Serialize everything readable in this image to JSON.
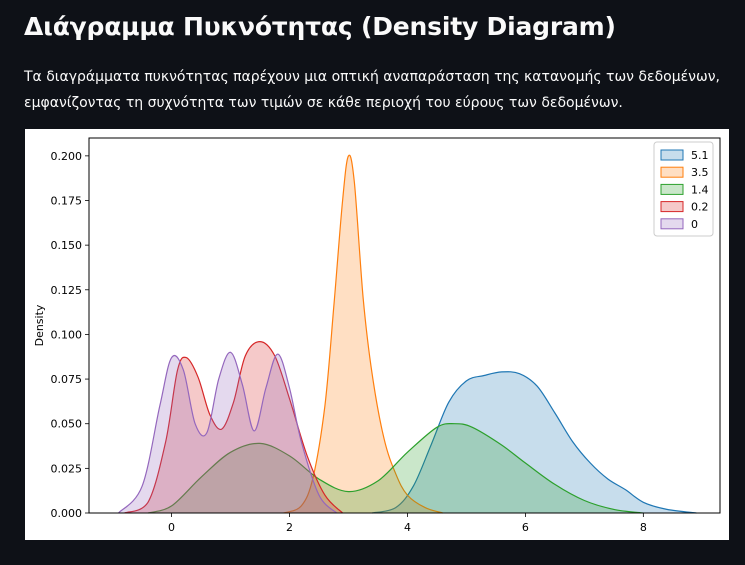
{
  "page": {
    "title": "Διάγραμμα Πυκνότητας (Density Diagram)",
    "description_line1": "Τα διαγράμματα πυκνότητας παρέχουν μια οπτική αναπαράσταση της κατανομής των δεδομένων,",
    "description_line2": "εμφανίζοντας τη συχνότητα των τιμών σε κάθε περιοχή του εύρους των δεδομένων."
  },
  "chart_data": {
    "type": "area",
    "subtype": "kde",
    "title": "",
    "xlabel": "",
    "ylabel": "Density",
    "xlim": [
      -1.4,
      9.3
    ],
    "ylim": [
      0,
      0.21
    ],
    "xticks": [
      0,
      2,
      4,
      6,
      8
    ],
    "yticks": [
      0.0,
      0.025,
      0.05,
      0.075,
      0.1,
      0.125,
      0.15,
      0.175,
      0.2
    ],
    "ytick_labels": [
      "0.000",
      "0.025",
      "0.050",
      "0.075",
      "0.100",
      "0.125",
      "0.150",
      "0.175",
      "0.200"
    ],
    "grid": false,
    "legend_position": "top-right",
    "series": [
      {
        "name": "5.1",
        "color": "#1f77b4",
        "x": [
          3.4,
          3.8,
          4.1,
          4.4,
          4.7,
          5.0,
          5.3,
          5.6,
          5.9,
          6.2,
          6.5,
          6.8,
          7.1,
          7.4,
          7.7,
          8.0,
          8.4,
          8.9
        ],
        "y": [
          0.0,
          0.003,
          0.015,
          0.038,
          0.062,
          0.074,
          0.077,
          0.079,
          0.078,
          0.071,
          0.056,
          0.04,
          0.028,
          0.019,
          0.013,
          0.006,
          0.002,
          0.0
        ]
      },
      {
        "name": "3.5",
        "color": "#ff7f0e",
        "x": [
          1.9,
          2.2,
          2.4,
          2.6,
          2.75,
          2.9,
          3.0,
          3.1,
          3.25,
          3.4,
          3.6,
          3.8,
          4.0,
          4.3,
          4.6
        ],
        "y": [
          0.0,
          0.004,
          0.02,
          0.06,
          0.115,
          0.175,
          0.2,
          0.185,
          0.12,
          0.078,
          0.042,
          0.022,
          0.01,
          0.003,
          0.0
        ]
      },
      {
        "name": "1.4",
        "color": "#2ca02c",
        "x": [
          -0.4,
          0.0,
          0.5,
          1.0,
          1.5,
          2.0,
          2.5,
          3.0,
          3.5,
          4.0,
          4.5,
          4.8,
          5.1,
          5.6,
          6.0,
          6.5,
          7.0,
          7.5,
          8.0
        ],
        "y": [
          0.0,
          0.004,
          0.02,
          0.034,
          0.039,
          0.032,
          0.019,
          0.012,
          0.018,
          0.034,
          0.048,
          0.05,
          0.048,
          0.038,
          0.028,
          0.016,
          0.007,
          0.002,
          0.0
        ]
      },
      {
        "name": "0.2",
        "color": "#d62728",
        "x": [
          -0.8,
          -0.4,
          -0.1,
          0.1,
          0.25,
          0.45,
          0.65,
          0.85,
          1.05,
          1.25,
          1.5,
          1.75,
          2.0,
          2.3,
          2.6,
          2.9
        ],
        "y": [
          0.0,
          0.006,
          0.04,
          0.08,
          0.087,
          0.076,
          0.055,
          0.047,
          0.062,
          0.088,
          0.096,
          0.088,
          0.064,
          0.032,
          0.01,
          0.0
        ]
      },
      {
        "name": "0",
        "color": "#9467bd",
        "x": [
          -0.9,
          -0.5,
          -0.2,
          0.0,
          0.2,
          0.4,
          0.6,
          0.8,
          1.0,
          1.2,
          1.4,
          1.6,
          1.8,
          2.0,
          2.2,
          2.5,
          2.8
        ],
        "y": [
          0.0,
          0.015,
          0.06,
          0.087,
          0.08,
          0.05,
          0.045,
          0.075,
          0.09,
          0.072,
          0.046,
          0.07,
          0.089,
          0.07,
          0.04,
          0.01,
          0.0
        ]
      }
    ]
  }
}
